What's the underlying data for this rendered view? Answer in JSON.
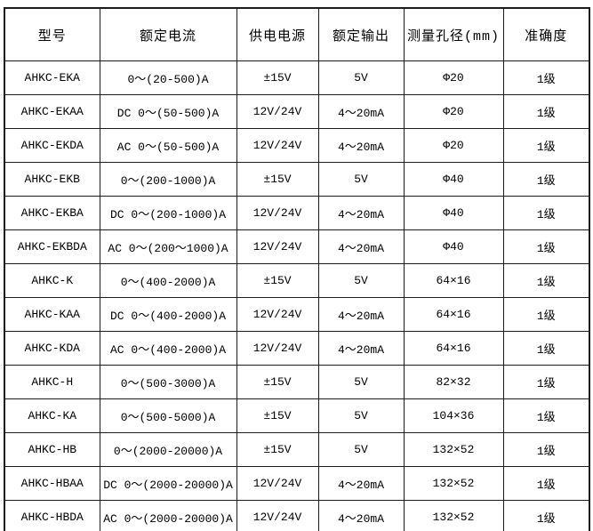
{
  "colors": {
    "border": "#1c1c1c",
    "background": "#ffffff",
    "text": "#000000"
  },
  "table": {
    "headers": [
      "型号",
      "额定电流",
      "供电电源",
      "额定输出",
      "测量孔径(mm)",
      "准确度"
    ],
    "rows": [
      [
        "AHKC-EKA",
        "0～(20-500)A",
        "±15V",
        "5V",
        "Φ20",
        "1级"
      ],
      [
        "AHKC-EKAA",
        "DC 0～(50-500)A",
        "12V/24V",
        "4～20mA",
        "Φ20",
        "1级"
      ],
      [
        "AHKC-EKDA",
        "AC 0～(50-500)A",
        "12V/24V",
        "4～20mA",
        "Φ20",
        "1级"
      ],
      [
        "AHKC-EKB",
        "0～(200-1000)A",
        "±15V",
        "5V",
        "Φ40",
        "1级"
      ],
      [
        "AHKC-EKBA",
        "DC 0～(200-1000)A",
        "12V/24V",
        "4～20mA",
        "Φ40",
        "1级"
      ],
      [
        "AHKC-EKBDA",
        "AC 0～(200～1000)A",
        "12V/24V",
        "4～20mA",
        "Φ40",
        "1级"
      ],
      [
        "AHKC-K",
        "0～(400-2000)A",
        "±15V",
        "5V",
        "64×16",
        "1级"
      ],
      [
        "AHKC-KAA",
        "DC 0～(400-2000)A",
        "12V/24V",
        "4～20mA",
        "64×16",
        "1级"
      ],
      [
        "AHKC-KDA",
        "AC 0～(400-2000)A",
        "12V/24V",
        "4～20mA",
        "64×16",
        "1级"
      ],
      [
        "AHKC-H",
        "0～(500-3000)A",
        "±15V",
        "5V",
        "82×32",
        "1级"
      ],
      [
        "AHKC-KA",
        "0～(500-5000)A",
        "±15V",
        "5V",
        "104×36",
        "1级"
      ],
      [
        "AHKC-HB",
        "0～(2000-20000)A",
        "±15V",
        "5V",
        "132×52",
        "1级"
      ],
      [
        "AHKC-HBAA",
        "DC 0～(2000-20000)A",
        "12V/24V",
        "4～20mA",
        "132×52",
        "1级"
      ],
      [
        "AHKC-HBDA",
        "AC 0～(2000-20000)A",
        "12V/24V",
        "4～20mA",
        "132×52",
        "1级"
      ]
    ]
  }
}
